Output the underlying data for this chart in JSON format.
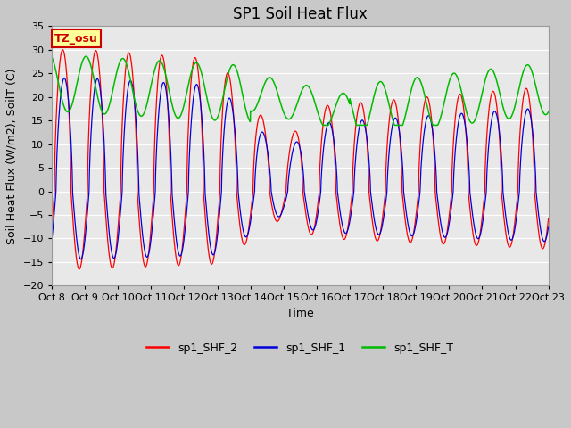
{
  "title": "SP1 Soil Heat Flux",
  "xlabel": "Time",
  "ylabel": "Soil Heat Flux (W/m2), SoilT (C)",
  "ylim": [
    -20,
    35
  ],
  "xlim": [
    0,
    15
  ],
  "yticks": [
    -20,
    -15,
    -10,
    -5,
    0,
    5,
    10,
    15,
    20,
    25,
    30,
    35
  ],
  "xtick_labels": [
    "Oct 8",
    "Oct 9",
    "Oct 10",
    "Oct 11",
    "Oct 12",
    "Oct 13",
    "Oct 14",
    "Oct 15",
    "Oct 16",
    "Oct 17",
    "Oct 18",
    "Oct 19",
    "Oct 20",
    "Oct 21",
    "Oct 22",
    "Oct 23"
  ],
  "fig_bg": "#c8c8c8",
  "plot_bg": "#e8e8e8",
  "line_colors": {
    "sp1_SHF_2": "#ff0000",
    "sp1_SHF_1": "#0000dd",
    "sp1_SHF_T": "#00bb00"
  },
  "tz_label": "TZ_osu",
  "tz_bg": "#ffff99",
  "tz_border": "#cc0000",
  "title_fontsize": 12,
  "axis_fontsize": 9,
  "tick_fontsize": 8,
  "legend_fontsize": 9,
  "n_days": 15,
  "points_per_day": 200
}
